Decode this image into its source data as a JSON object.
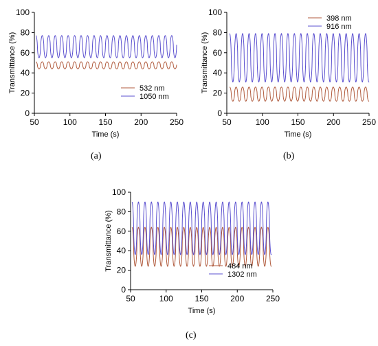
{
  "chart_data": [
    {
      "type": "line",
      "panel_label": "(a)",
      "xlabel": "Time (s)",
      "ylabel": "Transmittance (%)",
      "xlim": [
        50,
        250
      ],
      "ylim": [
        0,
        100
      ],
      "xticks": [
        50,
        100,
        150,
        200,
        250
      ],
      "yticks": [
        0,
        20,
        40,
        60,
        80,
        100
      ],
      "legend_position": "lower-right",
      "series": [
        {
          "name": "532 nm",
          "color": "#b05a3c",
          "min": 44,
          "max": 51,
          "period_s": 9.1,
          "x_start": 52,
          "x_end": 250
        },
        {
          "name": "1050 nm",
          "color": "#5a4fcf",
          "min": 55,
          "max": 77,
          "period_s": 9.1,
          "x_start": 52,
          "x_end": 250
        }
      ]
    },
    {
      "type": "line",
      "panel_label": "(b)",
      "xlabel": "Time (s)",
      "ylabel": "Transmittance (%)",
      "xlim": [
        50,
        250
      ],
      "ylim": [
        0,
        100
      ],
      "xticks": [
        50,
        100,
        150,
        200,
        250
      ],
      "yticks": [
        0,
        20,
        40,
        60,
        80,
        100
      ],
      "legend_position": "top-right",
      "series": [
        {
          "name": "398 nm",
          "color": "#b05a3c",
          "min": 12,
          "max": 26,
          "period_s": 9.1,
          "x_start": 54,
          "x_end": 250
        },
        {
          "name": "916 nm",
          "color": "#5a4fcf",
          "min": 31,
          "max": 79,
          "period_s": 9.1,
          "x_start": 54,
          "x_end": 250
        }
      ]
    },
    {
      "type": "line",
      "panel_label": "(c)",
      "xlabel": "Time (s)",
      "ylabel": "Transmittance (%)",
      "xlim": [
        50,
        250
      ],
      "ylim": [
        0,
        100
      ],
      "xticks": [
        50,
        100,
        150,
        200,
        250
      ],
      "yticks": [
        0,
        20,
        40,
        60,
        80,
        100
      ],
      "legend_position": "lower-right",
      "series": [
        {
          "name": "484 nm",
          "color": "#b05a3c",
          "min": 24,
          "max": 64,
          "period_s": 9.1,
          "x_start": 52,
          "x_end": 248
        },
        {
          "name": "1302 nm",
          "color": "#5a4fcf",
          "min": 36,
          "max": 90,
          "period_s": 9.1,
          "x_start": 52,
          "x_end": 248
        }
      ]
    }
  ]
}
